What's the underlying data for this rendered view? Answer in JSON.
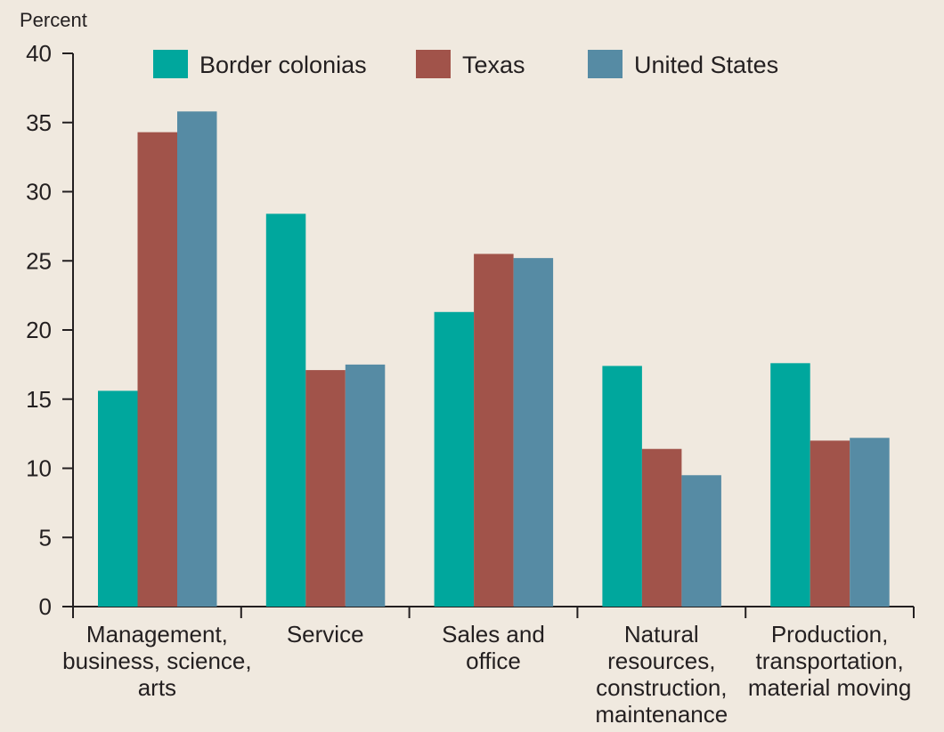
{
  "chart_data": {
    "type": "bar",
    "ylabel": "Percent",
    "xlabel": "",
    "ylim": [
      0,
      40
    ],
    "yticks": [
      "0",
      "5",
      "10",
      "15",
      "20",
      "25",
      "30",
      "35",
      "40"
    ],
    "categories": [
      [
        "Management,",
        "business, science,",
        "arts"
      ],
      [
        "Service"
      ],
      [
        "Sales and",
        "office"
      ],
      [
        "Natural",
        "resources,",
        "construction,",
        "maintenance"
      ],
      [
        "Production,",
        "transportation,",
        "material moving"
      ]
    ],
    "series": [
      {
        "name": "Border colonias",
        "color": "#00a79d",
        "values": [
          15.6,
          28.4,
          21.3,
          17.4,
          17.6
        ]
      },
      {
        "name": "Texas",
        "color": "#a1534a",
        "values": [
          34.3,
          17.1,
          25.5,
          11.4,
          12.0
        ]
      },
      {
        "name": "United States",
        "color": "#568ba4",
        "values": [
          35.8,
          17.5,
          25.2,
          9.5,
          12.2
        ]
      }
    ],
    "legend_position": "top",
    "grid": false
  }
}
